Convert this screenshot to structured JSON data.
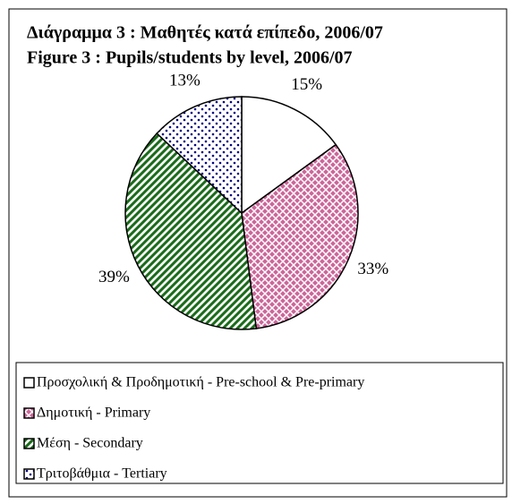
{
  "chart_data": {
    "type": "pie",
    "title": "Διάγραμμα 3 : Μαθητές κατά επίπεδο, 2006/07",
    "subtitle": "Figure 3 : Pupils/students by level, 2006/07",
    "categories": [
      "Προσχολική & Προδημοτική - Pre-school & Pre-primary",
      "Δημοτική - Primary",
      "Μέση - Secondary",
      "Τριτοβάθμια - Tertiary"
    ],
    "values": [
      15,
      33,
      39,
      13
    ],
    "value_labels": [
      "15%",
      "33%",
      "39%",
      "13%"
    ],
    "colors": [
      "#ffffff",
      "#cc6699",
      "#1a6b1a",
      "#000080"
    ],
    "patterns": [
      "solid",
      "crosshatch",
      "diagonal",
      "dots"
    ],
    "legend": "bottom"
  }
}
